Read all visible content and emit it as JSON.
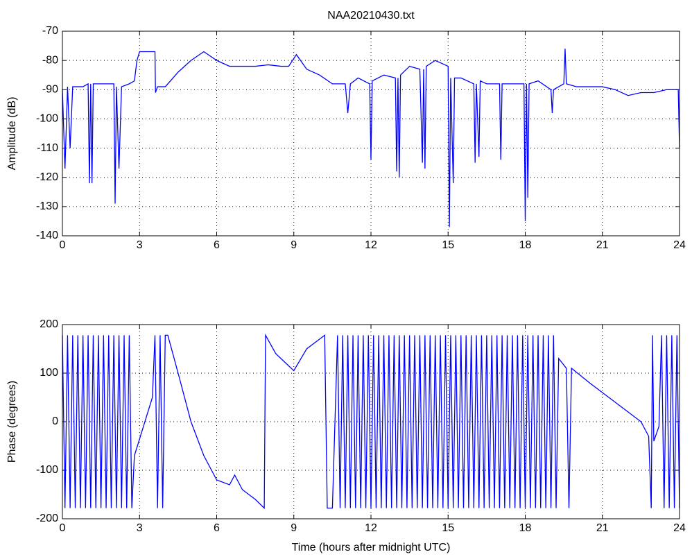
{
  "chart_data": [
    {
      "type": "line",
      "title": "NAA20210430.txt",
      "y_label": "Amplitude (dB)",
      "xlim": [
        0,
        24
      ],
      "xticks": [
        0,
        3,
        6,
        9,
        12,
        15,
        18,
        21,
        24
      ],
      "ylim": [
        -140,
        -70
      ],
      "yticks": [
        -140,
        -130,
        -120,
        -110,
        -100,
        -90,
        -80,
        -70
      ],
      "grid": true,
      "color": "#0000ff",
      "x": [
        0,
        0.1,
        0.2,
        0.3,
        0.4,
        0.8,
        1.0,
        1.05,
        1.1,
        1.15,
        1.2,
        1.5,
        2.0,
        2.05,
        2.1,
        2.2,
        2.3,
        2.6,
        2.8,
        2.9,
        3.0,
        3.3,
        3.6,
        3.62,
        3.7,
        4.0,
        4.2,
        4.5,
        5.0,
        5.5,
        6.0,
        6.5,
        7.0,
        7.5,
        8.0,
        8.5,
        8.8,
        9.1,
        9.5,
        10.0,
        10.5,
        11.0,
        11.1,
        11.2,
        11.5,
        11.95,
        12.0,
        12.05,
        12.5,
        12.95,
        13.0,
        13.05,
        13.1,
        13.15,
        13.5,
        13.9,
        14.0,
        14.05,
        14.1,
        14.15,
        14.5,
        15.0,
        15.05,
        15.1,
        15.2,
        15.25,
        15.5,
        16.0,
        16.05,
        16.1,
        16.2,
        16.25,
        16.5,
        17.0,
        17.05,
        17.1,
        17.5,
        17.95,
        18.0,
        18.05,
        18.1,
        18.15,
        18.5,
        19.0,
        19.05,
        19.1,
        19.5,
        19.55,
        19.6,
        20.0,
        20.5,
        21.0,
        21.5,
        22.0,
        22.5,
        23.0,
        23.5,
        23.95,
        24.0
      ],
      "values": [
        -90,
        -117,
        -89,
        -110,
        -89,
        -89,
        -88,
        -122,
        -88,
        -122,
        -88,
        -88,
        -88,
        -129,
        -89,
        -117,
        -89,
        -88,
        -87,
        -80,
        -77,
        -77,
        -77,
        -91,
        -89,
        -89,
        -87,
        -84,
        -80,
        -77,
        -80,
        -82,
        -82,
        -82,
        -81.5,
        -82,
        -82,
        -78,
        -83,
        -85,
        -88,
        -88,
        -98,
        -88,
        -86,
        -88,
        -114,
        -87,
        -85,
        -86,
        -118,
        -86,
        -120,
        -85,
        -82,
        -83,
        -115,
        -83,
        -117,
        -82,
        -80,
        -82,
        -137,
        -86,
        -122,
        -86,
        -86,
        -88,
        -115,
        -88,
        -113,
        -87,
        -88,
        -88,
        -114,
        -88,
        -88,
        -88,
        -135,
        -88,
        -127,
        -88,
        -87,
        -90,
        -98,
        -90,
        -88,
        -76,
        -88,
        -89,
        -89,
        -89,
        -90,
        -92,
        -91,
        -91,
        -90,
        -90,
        -110
      ]
    },
    {
      "type": "line",
      "x_label": "Time (hours after midnight UTC)",
      "y_label": "Phase (degrees)",
      "xlim": [
        0,
        24
      ],
      "xticks": [
        0,
        3,
        6,
        9,
        12,
        15,
        18,
        21,
        24
      ],
      "ylim": [
        -200,
        200
      ],
      "yticks": [
        -200,
        -100,
        0,
        100,
        200
      ],
      "grid": true,
      "color": "#0000ff",
      "x": [
        0,
        0.1,
        0.2,
        0.3,
        0.4,
        0.5,
        0.6,
        0.7,
        0.8,
        0.9,
        1.0,
        1.1,
        1.2,
        1.3,
        1.4,
        1.5,
        1.6,
        1.7,
        1.8,
        1.9,
        2.0,
        2.1,
        2.2,
        2.3,
        2.4,
        2.5,
        2.6,
        2.7,
        2.8,
        3.5,
        3.6,
        3.7,
        3.8,
        3.9,
        4.0,
        4.1,
        4.5,
        5.0,
        5.5,
        6.0,
        6.5,
        6.7,
        7.0,
        7.5,
        7.85,
        7.9,
        8.3,
        8.7,
        9.0,
        9.5,
        10.0,
        10.2,
        10.3,
        10.5,
        10.7,
        10.8,
        10.9,
        11.0,
        11.1,
        11.2,
        11.3,
        11.4,
        11.5,
        11.6,
        11.7,
        11.8,
        11.9,
        12.0,
        12.1,
        12.2,
        12.3,
        12.4,
        12.5,
        12.6,
        12.7,
        12.8,
        12.9,
        13.0,
        13.1,
        13.2,
        13.3,
        13.4,
        13.5,
        13.6,
        13.7,
        13.8,
        13.9,
        14.0,
        14.1,
        14.2,
        14.3,
        14.4,
        14.5,
        14.6,
        14.7,
        14.8,
        14.9,
        15.0,
        15.1,
        15.2,
        15.3,
        15.4,
        15.5,
        15.6,
        15.7,
        15.8,
        15.9,
        16.0,
        16.1,
        16.2,
        16.3,
        16.4,
        16.5,
        16.6,
        16.7,
        16.8,
        16.9,
        17.0,
        17.1,
        17.2,
        17.3,
        17.4,
        17.5,
        17.6,
        17.7,
        17.8,
        17.9,
        18.0,
        18.1,
        18.2,
        18.3,
        18.4,
        18.5,
        18.6,
        18.7,
        18.8,
        18.9,
        19.0,
        19.1,
        19.2,
        19.3,
        19.6,
        19.7,
        19.8,
        20.5,
        21.0,
        21.5,
        22.0,
        22.5,
        22.8,
        22.9,
        22.95,
        23.0,
        23.2,
        23.3,
        23.4,
        23.5,
        23.6,
        23.7,
        23.8,
        23.9,
        24.0
      ],
      "values": [
        178,
        -178,
        178,
        -178,
        178,
        -178,
        178,
        -178,
        178,
        -178,
        178,
        -178,
        178,
        -178,
        178,
        -178,
        178,
        -178,
        178,
        -178,
        178,
        -178,
        178,
        -178,
        178,
        -178,
        178,
        -178,
        -70,
        50,
        178,
        -178,
        178,
        -178,
        178,
        178,
        100,
        0,
        -70,
        -120,
        -130,
        -110,
        -140,
        -160,
        -178,
        178,
        140,
        120,
        105,
        150,
        170,
        178,
        -178,
        -178,
        178,
        -178,
        178,
        -178,
        178,
        -178,
        178,
        -178,
        178,
        -178,
        178,
        -178,
        178,
        -178,
        178,
        -178,
        178,
        -178,
        178,
        -178,
        178,
        -178,
        178,
        -178,
        178,
        -178,
        178,
        -178,
        178,
        -178,
        178,
        -178,
        178,
        -178,
        178,
        -178,
        178,
        -178,
        178,
        -178,
        178,
        -178,
        178,
        -178,
        178,
        -178,
        178,
        -178,
        178,
        -178,
        178,
        -178,
        178,
        -178,
        178,
        -178,
        178,
        -178,
        178,
        -178,
        178,
        -178,
        178,
        -178,
        178,
        -178,
        178,
        -178,
        178,
        -178,
        178,
        -178,
        178,
        -178,
        178,
        -178,
        178,
        -178,
        178,
        -178,
        178,
        -178,
        178,
        -178,
        178,
        -178,
        130,
        110,
        -178,
        110,
        80,
        60,
        40,
        20,
        0,
        -30,
        -178,
        178,
        -40,
        -10,
        178,
        -178,
        178,
        -178,
        178,
        -178,
        178,
        -178
      ]
    }
  ]
}
